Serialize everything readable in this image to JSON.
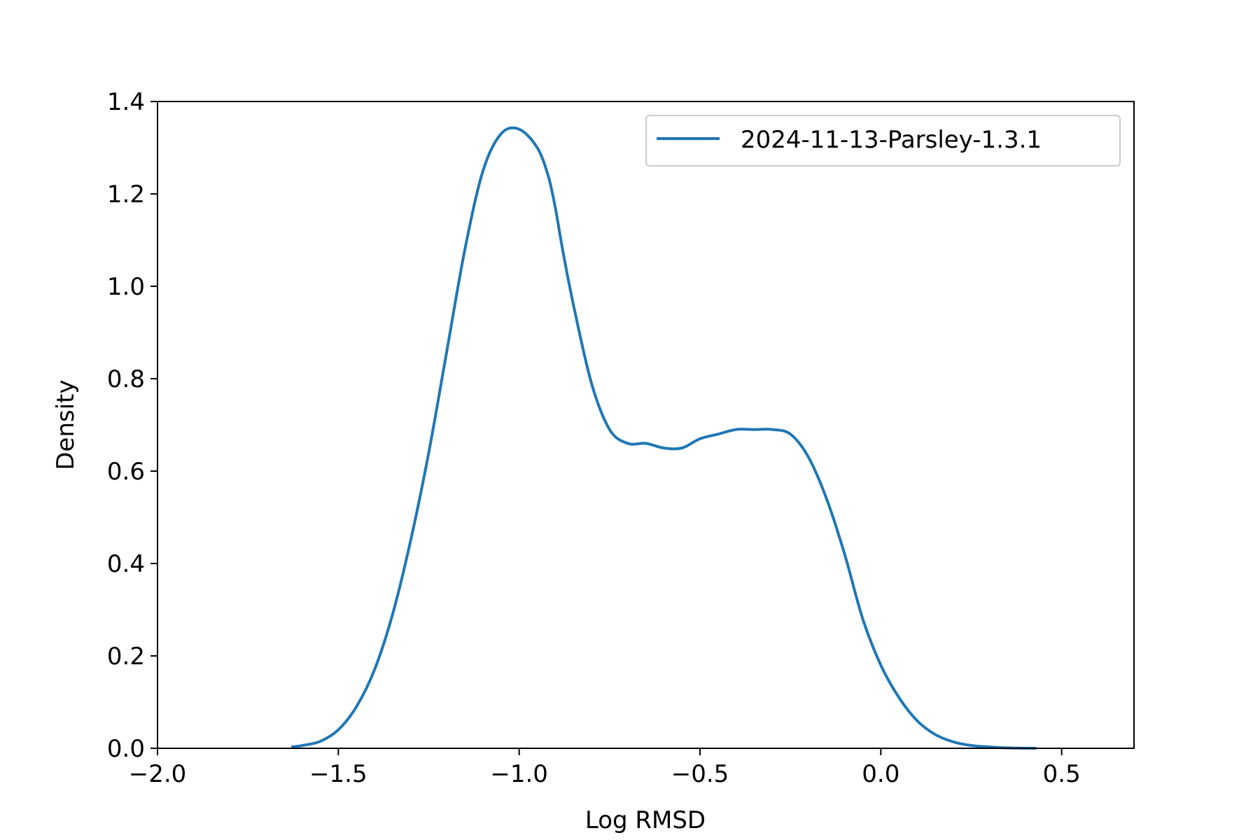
{
  "chart_data": {
    "type": "line",
    "title": "",
    "xlabel": "Log RMSD",
    "ylabel": "Density",
    "xlim": [
      -2.0,
      0.7
    ],
    "ylim": [
      0.0,
      1.4
    ],
    "xticks": [
      -2.0,
      -1.5,
      -1.0,
      -0.5,
      0.0,
      0.5
    ],
    "xtick_labels": [
      "−2.0",
      "−1.5",
      "−1.0",
      "−0.5",
      "0.0",
      "0.5"
    ],
    "yticks": [
      0.0,
      0.2,
      0.4,
      0.6,
      0.8,
      1.0,
      1.2,
      1.4
    ],
    "ytick_labels": [
      "0.0",
      "0.2",
      "0.4",
      "0.6",
      "0.8",
      "1.0",
      "1.2",
      "1.4"
    ],
    "grid": false,
    "legend_position": "top-right",
    "series": [
      {
        "name": "2024-11-13-Parsley-1.3.1",
        "color": "#1f77b4",
        "x": [
          -1.63,
          -1.6,
          -1.55,
          -1.5,
          -1.45,
          -1.4,
          -1.35,
          -1.3,
          -1.25,
          -1.2,
          -1.15,
          -1.1,
          -1.05,
          -1.0,
          -0.95,
          -0.92,
          -0.9,
          -0.88,
          -0.85,
          -0.8,
          -0.75,
          -0.7,
          -0.65,
          -0.6,
          -0.55,
          -0.5,
          -0.45,
          -0.4,
          -0.35,
          -0.3,
          -0.25,
          -0.2,
          -0.15,
          -0.1,
          -0.05,
          0.0,
          0.05,
          0.1,
          0.15,
          0.2,
          0.25,
          0.3,
          0.35,
          0.43
        ],
        "y": [
          0.003,
          0.006,
          0.015,
          0.04,
          0.09,
          0.17,
          0.29,
          0.45,
          0.64,
          0.86,
          1.08,
          1.25,
          1.33,
          1.34,
          1.3,
          1.24,
          1.17,
          1.08,
          0.96,
          0.79,
          0.69,
          0.66,
          0.66,
          0.65,
          0.65,
          0.67,
          0.68,
          0.69,
          0.69,
          0.69,
          0.68,
          0.63,
          0.54,
          0.42,
          0.28,
          0.18,
          0.11,
          0.06,
          0.03,
          0.014,
          0.006,
          0.003,
          0.001,
          0.0
        ]
      }
    ]
  }
}
